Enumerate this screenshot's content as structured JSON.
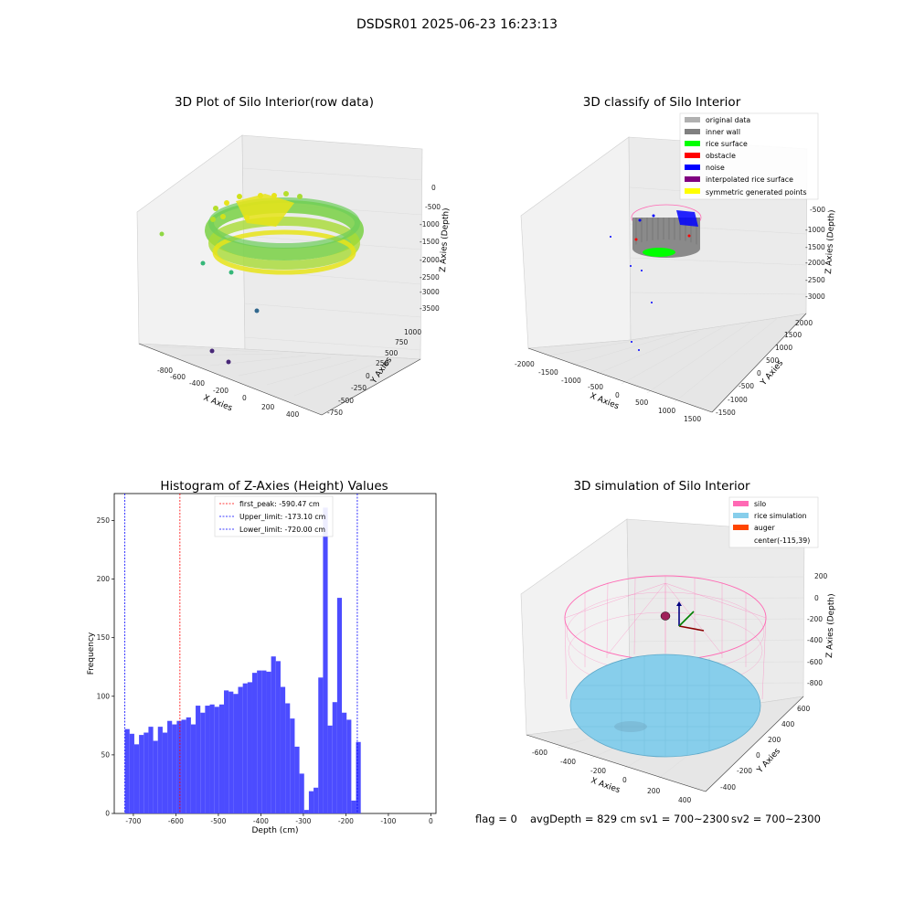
{
  "suptitle": "DSDSR01 2025-06-23 16:23:13",
  "status": {
    "flag": "flag = 0",
    "avg_depth": "avgDepth = 829 cm",
    "sv1": "sv1 = 700~2300",
    "sv2": "sv2 = 700~2300"
  },
  "chart_data": [
    {
      "type": "scatter",
      "title": "3D Plot of Silo Interior(row data)",
      "xlabel": "X Axies",
      "ylabel": "Y Axies",
      "zlabel": "Z Axies (Depth)",
      "x_ticks": [
        "-800",
        "-600",
        "-400",
        "-200",
        "0",
        "200",
        "400"
      ],
      "y_ticks": [
        "-750",
        "-500",
        "-250",
        "0",
        "250",
        "500",
        "750",
        "1000"
      ],
      "z_ticks": [
        "0",
        "-500",
        "-1000",
        "-1500",
        "-2000",
        "-2500",
        "-3000",
        "-3500"
      ],
      "colormap": "viridis",
      "colors": {
        "ring": "#7fd34e",
        "bright": "#e8e419",
        "mid": "#35b779",
        "deep": "#31688e",
        "dark": "#482878"
      }
    },
    {
      "type": "scatter",
      "title": "3D classify of Silo Interior",
      "xlabel": "X Axies",
      "ylabel": "Y Axies",
      "zlabel": "Z Axies (Depth)",
      "x_ticks": [
        "-2000",
        "-1500",
        "-1000",
        "-500",
        "0",
        "500",
        "1000",
        "1500"
      ],
      "y_ticks": [
        "-1500",
        "-1000",
        "-500",
        "0",
        "500",
        "1000",
        "1500",
        "2000"
      ],
      "z_ticks": [
        "-500",
        "-1000",
        "-1500",
        "-2000",
        "-2500",
        "-3000"
      ],
      "legend": [
        {
          "label": "original data",
          "color": "#b0b0b0"
        },
        {
          "label": "inner wall",
          "color": "#808080"
        },
        {
          "label": "rice surface",
          "color": "#00ff00"
        },
        {
          "label": "obstacle",
          "color": "#ff0000"
        },
        {
          "label": "noise",
          "color": "#0000ff"
        },
        {
          "label": "interpolated rice surface",
          "color": "#800080"
        },
        {
          "label": "symmetric generated points",
          "color": "#ffff00"
        }
      ],
      "legend_position": "top-right"
    },
    {
      "type": "bar",
      "title": "Histogram of Z-Axies (Height) Values",
      "xlabel": "Depth (cm)",
      "ylabel": "Frequency",
      "xlim": [
        -745,
        12
      ],
      "ylim": [
        0,
        273
      ],
      "x_ticks": [
        -700,
        -600,
        -500,
        -400,
        -300,
        -200,
        -100,
        0
      ],
      "y_ticks": [
        0,
        50,
        100,
        150,
        200,
        250
      ],
      "bin_width": 11.1,
      "bin_start": -720,
      "values": [
        72,
        68,
        59,
        67,
        69,
        74,
        62,
        74,
        69,
        79,
        76,
        79,
        80,
        82,
        76,
        92,
        86,
        92,
        93,
        91,
        93,
        105,
        104,
        102,
        108,
        111,
        112,
        120,
        122,
        122,
        121,
        134,
        130,
        108,
        94,
        81,
        57,
        34,
        3,
        19,
        22,
        116,
        261,
        75,
        95,
        184,
        86,
        80,
        11,
        61
      ],
      "bar_color": "#4c4cff",
      "vlines": [
        {
          "label": "first_peak: -590.47 cm",
          "value": -590.47,
          "color": "#ff0000"
        },
        {
          "label": "Upper_limit: -173.10 cm",
          "value": -173.1,
          "color": "#0000ff"
        },
        {
          "label": "Lower_limit: -720.00 cm",
          "value": -720.0,
          "color": "#0000ff"
        }
      ],
      "legend_position": "top-center"
    },
    {
      "type": "scatter",
      "title": "3D simulation of Silo Interior",
      "xlabel": "X Axies",
      "ylabel": "Y Axies",
      "zlabel": "Z Axies (Depth)",
      "x_ticks": [
        "-600",
        "-400",
        "-200",
        "0",
        "200",
        "400"
      ],
      "y_ticks": [
        "-400",
        "-200",
        "0",
        "200",
        "400",
        "600"
      ],
      "z_ticks": [
        "200",
        "0",
        "-200",
        "-400",
        "-600",
        "-800"
      ],
      "legend": [
        {
          "label": "silo",
          "color": "#ff69b4"
        },
        {
          "label": "rice simulation",
          "color": "#87ceeb"
        },
        {
          "label": "auger",
          "color": "#ff4500"
        },
        {
          "label": "center(-115,39)",
          "color": ""
        }
      ],
      "legend_position": "top-right"
    }
  ]
}
